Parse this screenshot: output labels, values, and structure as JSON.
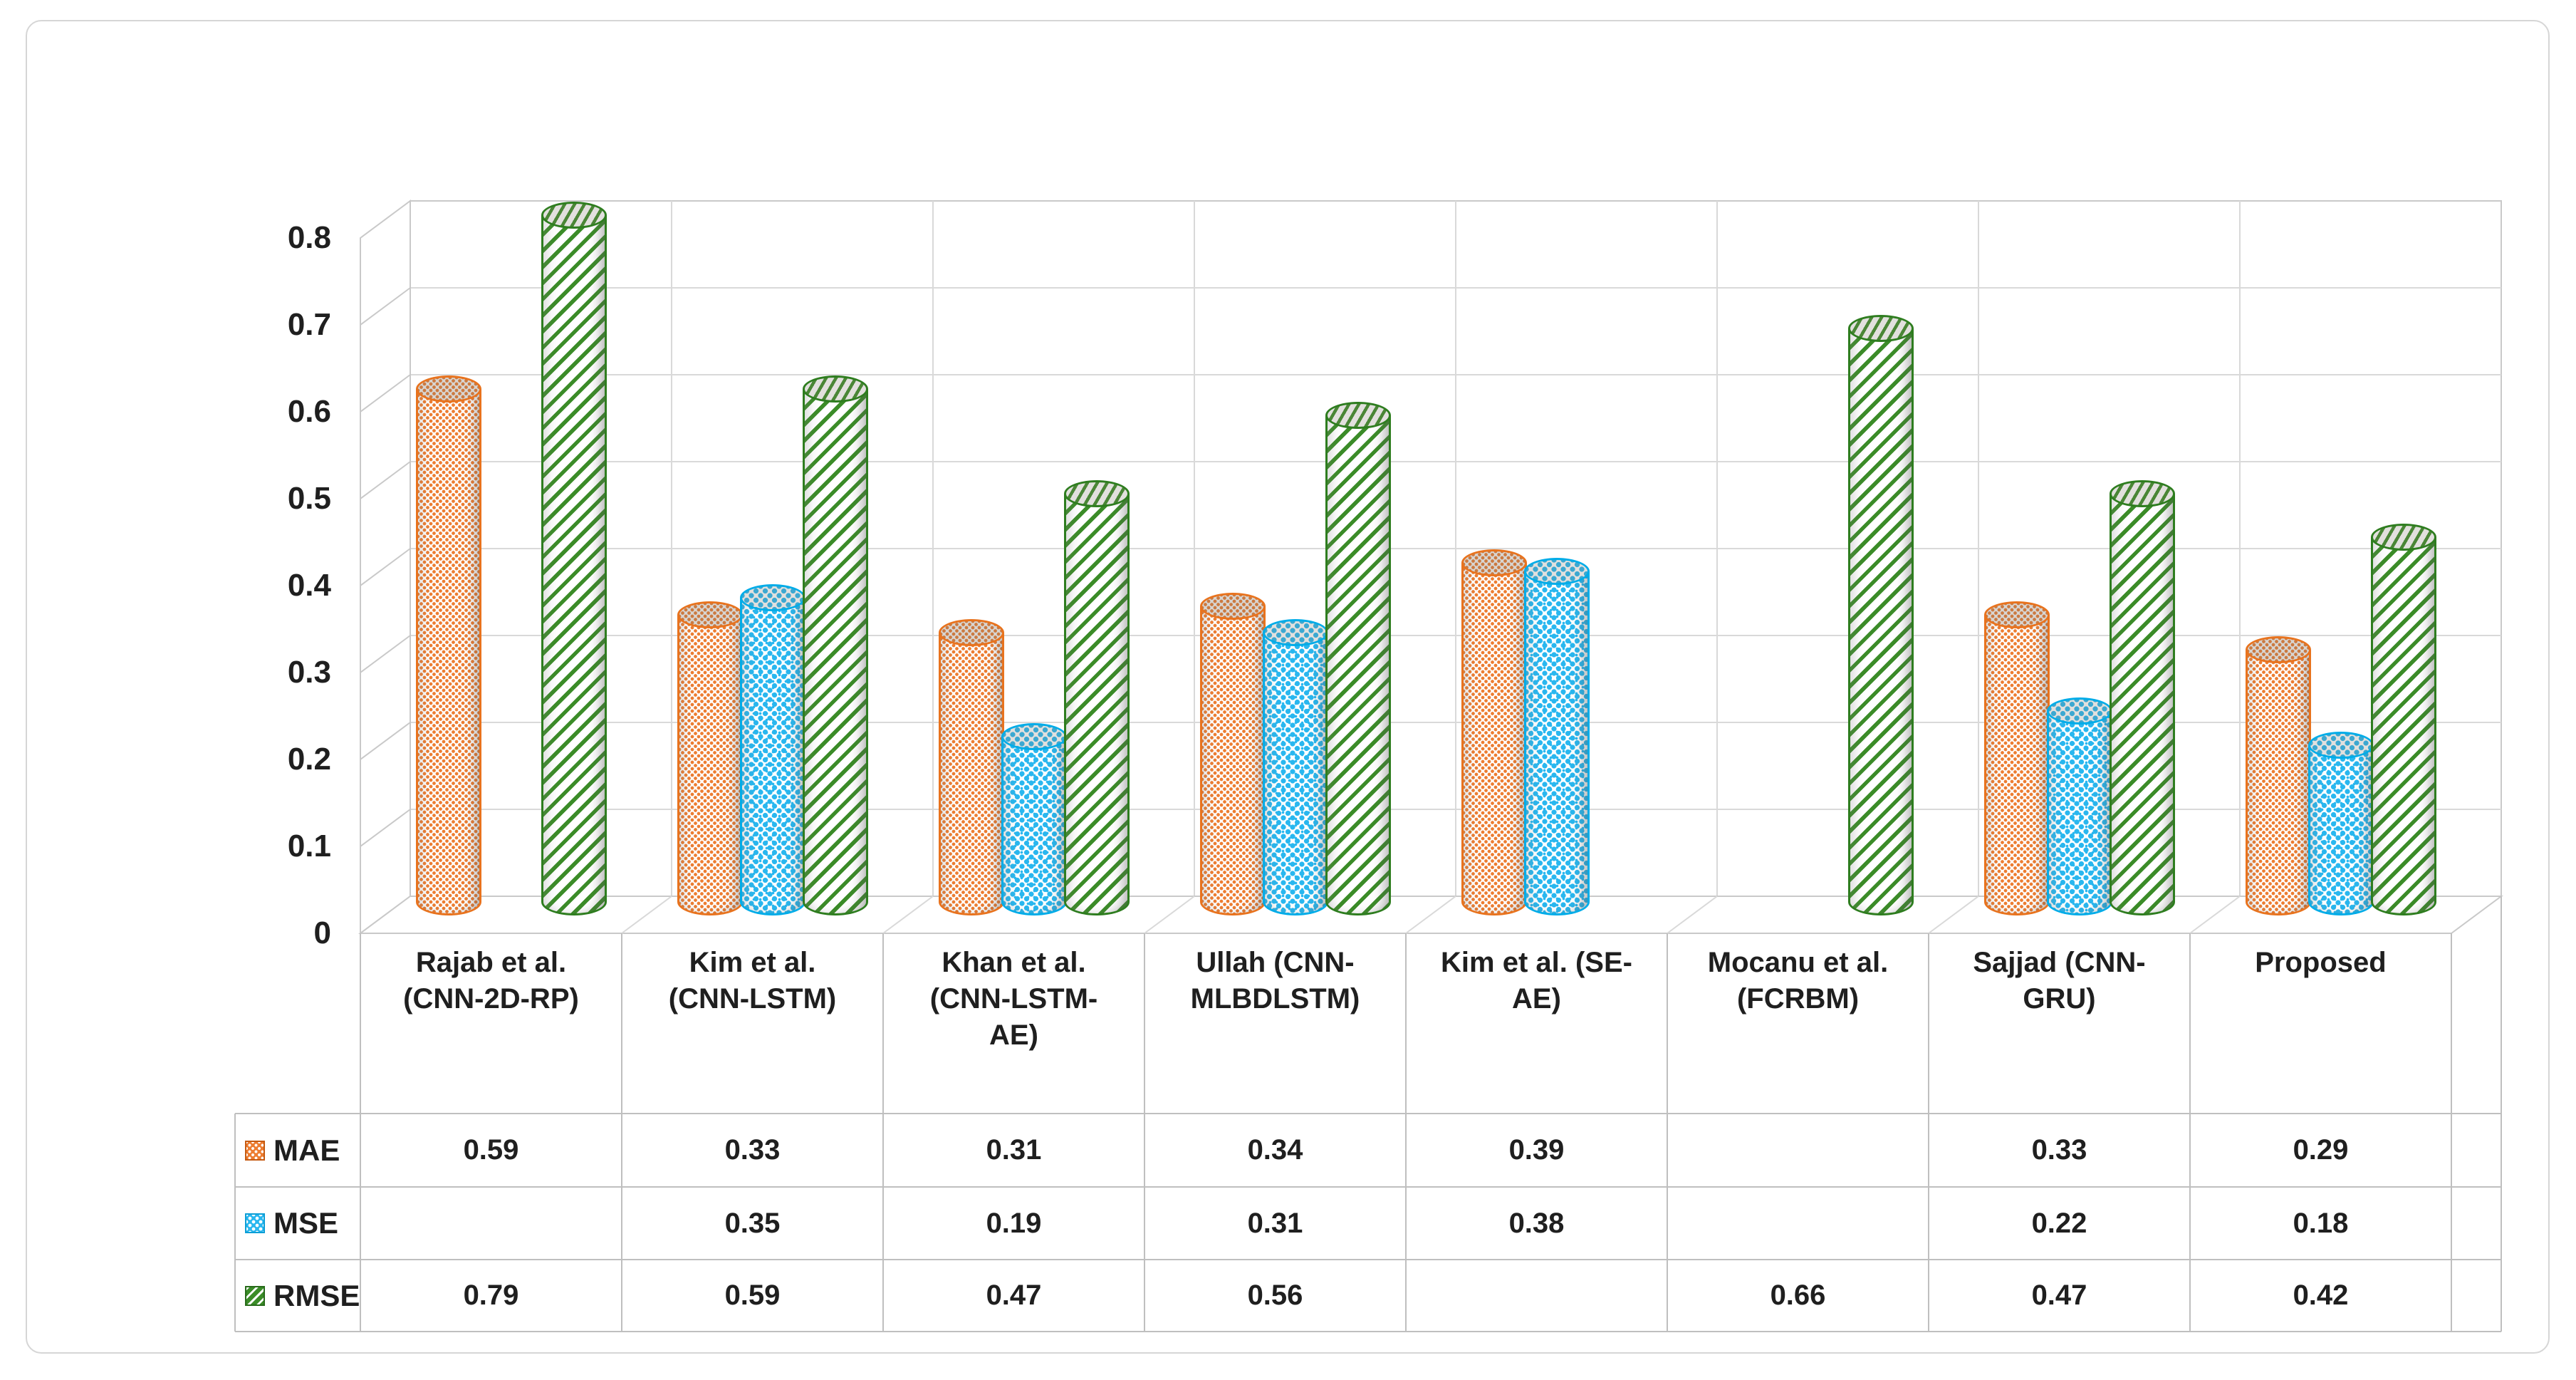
{
  "figure": {
    "kind": "3d-cylinder-column-chart-with-data-table",
    "background": "#ffffff",
    "frame_border_color": "#D6D6D6"
  },
  "chart_data": {
    "type": "bar",
    "style": "3d-cylinder",
    "title": "",
    "xlabel": "",
    "ylabel": "",
    "categories": [
      "Rajab et al. (CNN-2D-RP)",
      "Kim et al. (CNN-LSTM)",
      "Khan et al. (CNN-LSTM-AE)",
      "Ullah (CNN-MLBDLSTM)",
      "Kim et al. (SE-AE)",
      "Mocanu et al. (FCRBM)",
      "Sajjad (CNN-GRU)",
      "Proposed"
    ],
    "category_label_lines": [
      [
        "Rajab et al.",
        "(CNN-2D-RP)"
      ],
      [
        "Kim et al.",
        "(CNN-LSTM)"
      ],
      [
        "Khan et al.",
        "(CNN-LSTM-",
        "AE)"
      ],
      [
        "Ullah (CNN-",
        "MLBDLSTM)"
      ],
      [
        "Kim et al. (SE-",
        "AE)"
      ],
      [
        "Mocanu et al.",
        "(FCRBM)"
      ],
      [
        "Sajjad (CNN-",
        "GRU)"
      ],
      [
        "Proposed"
      ]
    ],
    "series": [
      {
        "name": "MAE",
        "color": "#ED7D31",
        "border_color": "#E8731E",
        "pattern": "checker-dots",
        "values": [
          0.59,
          0.33,
          0.31,
          0.34,
          0.39,
          null,
          0.33,
          0.29
        ]
      },
      {
        "name": "MSE",
        "color": "#29B7EF",
        "border_color": "#00ACE8",
        "pattern": "confetti-dots",
        "values": [
          null,
          0.35,
          0.19,
          0.31,
          0.38,
          null,
          0.22,
          0.18
        ]
      },
      {
        "name": "RMSE",
        "color": "#3B8C28",
        "border_color": "#2E7D1F",
        "pattern": "diagonal-stripes",
        "values": [
          0.79,
          0.59,
          0.47,
          0.56,
          null,
          0.66,
          0.47,
          0.42
        ]
      }
    ],
    "y_axis": {
      "min": 0,
      "max": 0.8,
      "step": 0.1,
      "tick_labels": [
        "0",
        "0.1",
        "0.2",
        "0.3",
        "0.4",
        "0.5",
        "0.6",
        "0.7",
        "0.8"
      ]
    },
    "grid": true,
    "legend_position": "data-table-left-column",
    "data_table_shown": true
  },
  "colors": {
    "gridline": "#D9D9D9",
    "wall_outline": "#C9C9C9",
    "table_border": "#BFBFBF",
    "text": "#1F1F1F"
  }
}
